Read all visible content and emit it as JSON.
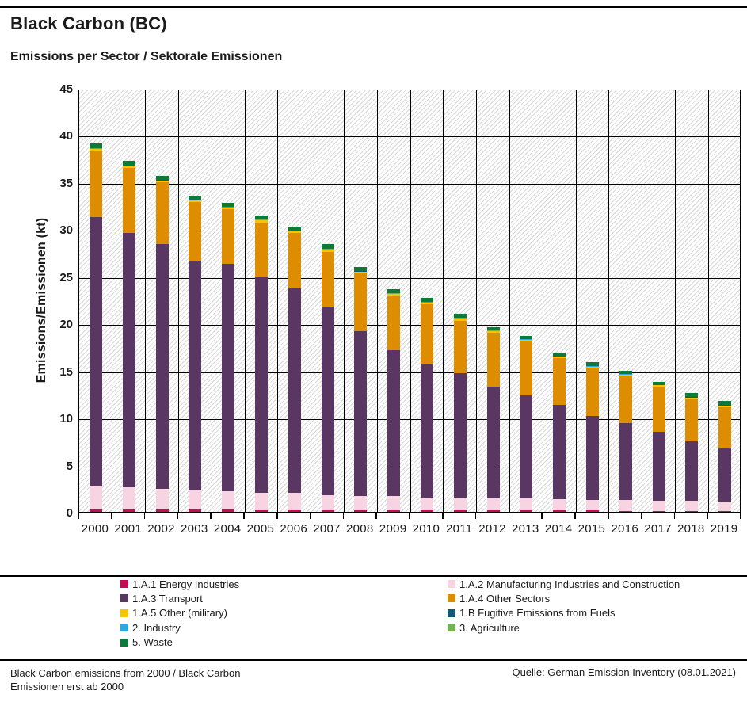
{
  "header": {
    "title": "Black Carbon (BC)",
    "subtitle": "Emissions per Sector / Sektorale Emissionen"
  },
  "chart": {
    "y_axis_label": "Emissions/Emissionen (kt)",
    "y_ticks": [
      0,
      5,
      10,
      15,
      20,
      25,
      30,
      35,
      40,
      45
    ],
    "grid": true,
    "hatch_background": true,
    "gridline_color": "#000000",
    "hatch_color": "#d7d7d7"
  },
  "chart_data": {
    "type": "bar",
    "stacked": true,
    "title": "Black Carbon (BC) — Emissions per Sector / Sektorale Emissionen",
    "xlabel": "",
    "ylabel": "Emissions/Emissionen (kt)",
    "ylim": [
      0,
      45
    ],
    "legend_position": "bottom",
    "categories": [
      "2000",
      "2001",
      "2002",
      "2003",
      "2004",
      "2005",
      "2006",
      "2007",
      "2008",
      "2009",
      "2010",
      "2011",
      "2012",
      "2013",
      "2014",
      "2015",
      "2016",
      "2017",
      "2018",
      "2019"
    ],
    "series": [
      {
        "name": "1.A.1 Energy Industries",
        "color": "#C50D56",
        "values": [
          0.25,
          0.25,
          0.25,
          0.25,
          0.25,
          0.2,
          0.2,
          0.2,
          0.2,
          0.2,
          0.2,
          0.2,
          0.15,
          0.15,
          0.15,
          0.15,
          0.12,
          0.12,
          0.12,
          0.12
        ]
      },
      {
        "name": "1.A.2 Manufacturing Industries and Construction",
        "color": "#F8D3E2",
        "values": [
          2.55,
          2.4,
          2.15,
          2.05,
          1.95,
          1.8,
          1.8,
          1.55,
          1.5,
          1.5,
          1.35,
          1.3,
          1.25,
          1.25,
          1.2,
          1.15,
          1.13,
          1.08,
          1.03,
          0.98
        ]
      },
      {
        "name": "1.A.3 Transport",
        "color": "#5A3763",
        "values": [
          28.5,
          26.95,
          26.0,
          24.4,
          24.1,
          23.0,
          21.8,
          20.05,
          17.5,
          15.5,
          14.15,
          13.2,
          11.9,
          11.0,
          10.0,
          8.9,
          8.15,
          7.3,
          6.35,
          5.7
        ]
      },
      {
        "name": "1.A.4 Other Sectors",
        "color": "#DE8D00",
        "values": [
          7.0,
          6.9,
          6.6,
          6.2,
          5.8,
          5.7,
          5.8,
          5.8,
          6.1,
          5.7,
          6.3,
          5.6,
          5.7,
          5.7,
          4.95,
          5.0,
          5.0,
          4.8,
          4.5,
          4.3
        ]
      },
      {
        "name": "1.A.5 Other (military)",
        "color": "#F8C300",
        "values": [
          0.22,
          0.22,
          0.2,
          0.2,
          0.2,
          0.22,
          0.2,
          0.22,
          0.2,
          0.2,
          0.2,
          0.2,
          0.15,
          0.15,
          0.15,
          0.2,
          0.15,
          0.12,
          0.15,
          0.2
        ]
      },
      {
        "name": "1.B Fugitive Emissions from Fuels",
        "color": "#0F5B76",
        "values": [
          0.04,
          0.04,
          0.04,
          0.04,
          0.04,
          0.04,
          0.04,
          0.04,
          0.04,
          0.04,
          0.04,
          0.04,
          0.04,
          0.04,
          0.04,
          0.04,
          0.04,
          0.04,
          0.04,
          0.04
        ]
      },
      {
        "name": "2. Industry",
        "color": "#2FA8DF",
        "values": [
          0.02,
          0.02,
          0.02,
          0.02,
          0.02,
          0.02,
          0.02,
          0.02,
          0.02,
          0.02,
          0.02,
          0.02,
          0.02,
          0.02,
          0.02,
          0.02,
          0.02,
          0.02,
          0.02,
          0.02
        ]
      },
      {
        "name": "3. Agriculture",
        "color": "#6FB64F",
        "values": [
          0.02,
          0.02,
          0.02,
          0.02,
          0.02,
          0.02,
          0.02,
          0.02,
          0.02,
          0.02,
          0.02,
          0.02,
          0.02,
          0.02,
          0.02,
          0.02,
          0.02,
          0.02,
          0.02,
          0.02
        ]
      },
      {
        "name": "5. Waste",
        "color": "#0E7A38",
        "values": [
          0.5,
          0.5,
          0.42,
          0.42,
          0.42,
          0.5,
          0.42,
          0.5,
          0.42,
          0.42,
          0.42,
          0.42,
          0.37,
          0.37,
          0.37,
          0.42,
          0.37,
          0.3,
          0.37,
          0.42
        ]
      }
    ]
  },
  "legend": {
    "left_indices": [
      0,
      2,
      4,
      6,
      8
    ],
    "right_indices": [
      1,
      3,
      5,
      7
    ]
  },
  "footer": {
    "left_line1": "Black Carbon emissions from 2000 / Black Carbon",
    "left_line2": "Emissionen erst ab 2000",
    "source": "Quelle: German Emission Inventory (08.01.2021)"
  }
}
